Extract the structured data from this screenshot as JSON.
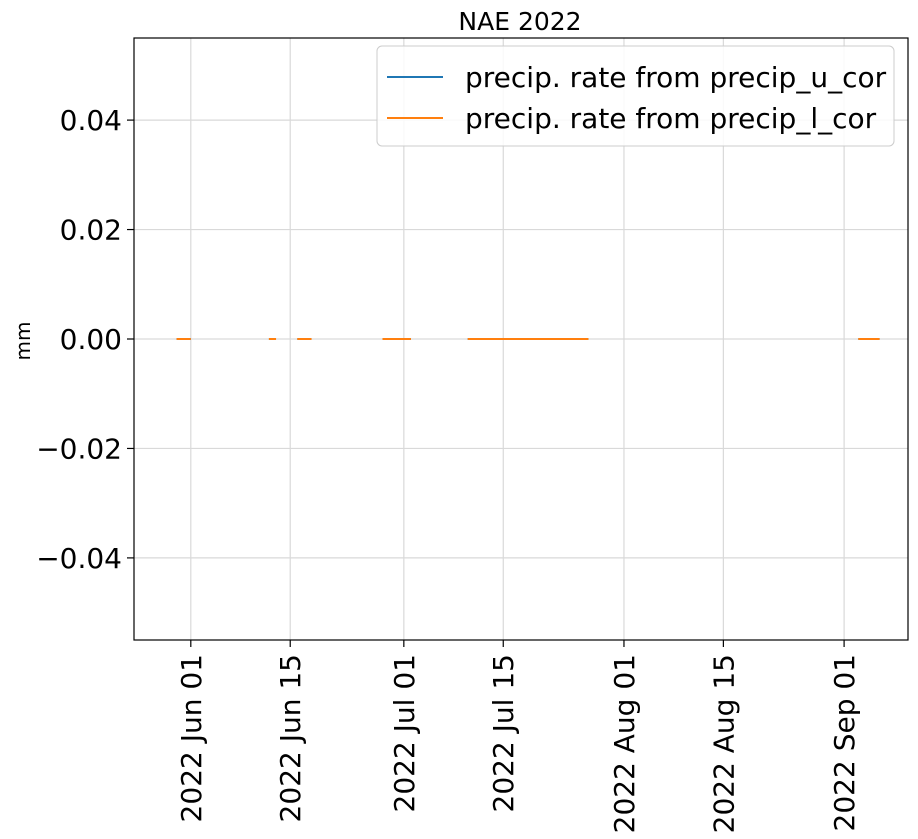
{
  "chart_data": {
    "type": "line",
    "title": "NAE 2022",
    "xlabel": "",
    "ylabel": "mm",
    "ylim": [
      -0.055,
      0.055
    ],
    "xlim": [
      "2022-05-24",
      "2022-09-10"
    ],
    "grid": true,
    "legend_position": "top-right",
    "y_ticks": [
      {
        "value": 0.04,
        "label": "0.04"
      },
      {
        "value": 0.02,
        "label": "0.02"
      },
      {
        "value": 0.0,
        "label": "0.00"
      },
      {
        "value": -0.02,
        "label": "−0.02"
      },
      {
        "value": -0.04,
        "label": "−0.04"
      }
    ],
    "x_ticks": [
      {
        "date": "2022-06-01",
        "label": "2022 Jun 01"
      },
      {
        "date": "2022-06-15",
        "label": "2022 Jun 15"
      },
      {
        "date": "2022-07-01",
        "label": "2022 Jul 01"
      },
      {
        "date": "2022-07-15",
        "label": "2022 Jul 15"
      },
      {
        "date": "2022-08-01",
        "label": "2022 Aug 01"
      },
      {
        "date": "2022-08-15",
        "label": "2022 Aug 15"
      },
      {
        "date": "2022-09-01",
        "label": "2022 Sep 01"
      }
    ],
    "series": [
      {
        "name": "precip. rate from precip_u_cor",
        "color": "#1f77b4",
        "segments": [
          {
            "start": "2022-05-30",
            "end": "2022-06-01",
            "value": 0.0
          },
          {
            "start": "2022-06-12",
            "end": "2022-06-13",
            "value": 0.0
          },
          {
            "start": "2022-06-16",
            "end": "2022-06-18",
            "value": 0.0
          },
          {
            "start": "2022-06-28",
            "end": "2022-07-02",
            "value": 0.0
          },
          {
            "start": "2022-07-10",
            "end": "2022-07-27",
            "value": 0.0
          },
          {
            "start": "2022-09-03",
            "end": "2022-09-06",
            "value": 0.0
          }
        ]
      },
      {
        "name": "precip. rate from precip_l_cor",
        "color": "#ff7f0e",
        "segments": [
          {
            "start": "2022-05-30",
            "end": "2022-06-01",
            "value": 0.0
          },
          {
            "start": "2022-06-12",
            "end": "2022-06-13",
            "value": 0.0
          },
          {
            "start": "2022-06-16",
            "end": "2022-06-18",
            "value": 0.0
          },
          {
            "start": "2022-06-28",
            "end": "2022-07-02",
            "value": 0.0
          },
          {
            "start": "2022-07-10",
            "end": "2022-07-27",
            "value": 0.0
          },
          {
            "start": "2022-09-03",
            "end": "2022-09-06",
            "value": 0.0
          }
        ]
      }
    ]
  }
}
